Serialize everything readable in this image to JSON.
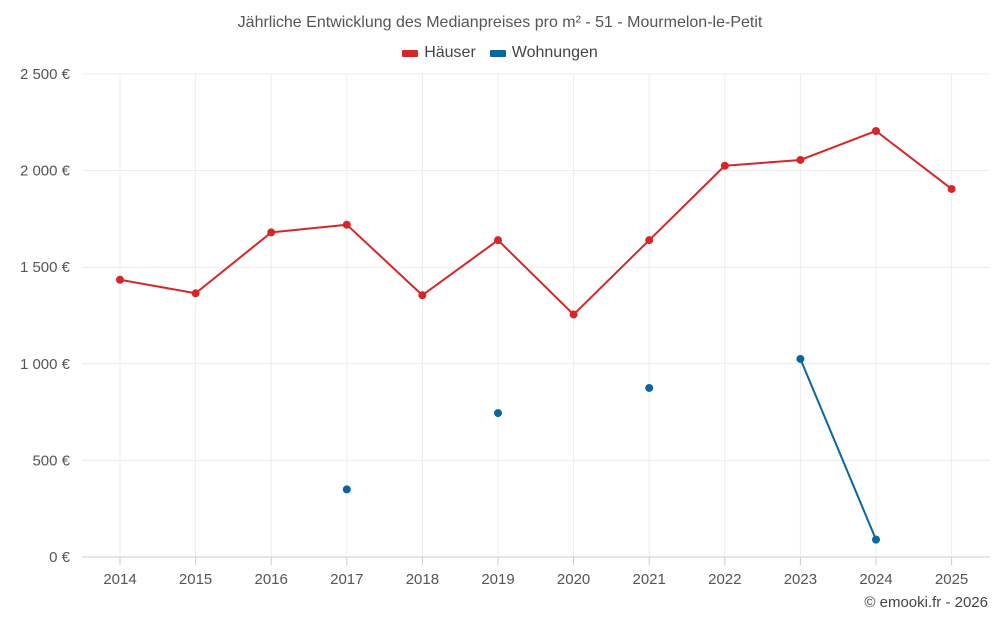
{
  "chart_data": {
    "type": "line",
    "title": "Jährliche Entwicklung des Medianpreises pro m² - 51 - Mourmelon-le-Petit",
    "categories": [
      "2014",
      "2015",
      "2016",
      "2017",
      "2018",
      "2019",
      "2020",
      "2021",
      "2022",
      "2023",
      "2024",
      "2025"
    ],
    "y_ticks": [
      0,
      500,
      1000,
      1500,
      2000,
      2500
    ],
    "y_tick_labels": [
      "0 €",
      "500 €",
      "1 000 €",
      "1 500 €",
      "2 000 €",
      "2 500 €"
    ],
    "ylim": [
      0,
      2500
    ],
    "grid": true,
    "legend_position": "top-center",
    "series": [
      {
        "name": "Häuser",
        "color": "#d62728",
        "values": [
          1435,
          1365,
          1680,
          1720,
          1355,
          1640,
          1255,
          1640,
          2025,
          2055,
          2205,
          1905
        ]
      },
      {
        "name": "Wohnungen",
        "color": "#0a66a0",
        "values": [
          null,
          null,
          null,
          350,
          null,
          745,
          null,
          875,
          null,
          1025,
          90,
          null
        ]
      }
    ]
  },
  "credit": "© emooki.fr - 2026"
}
